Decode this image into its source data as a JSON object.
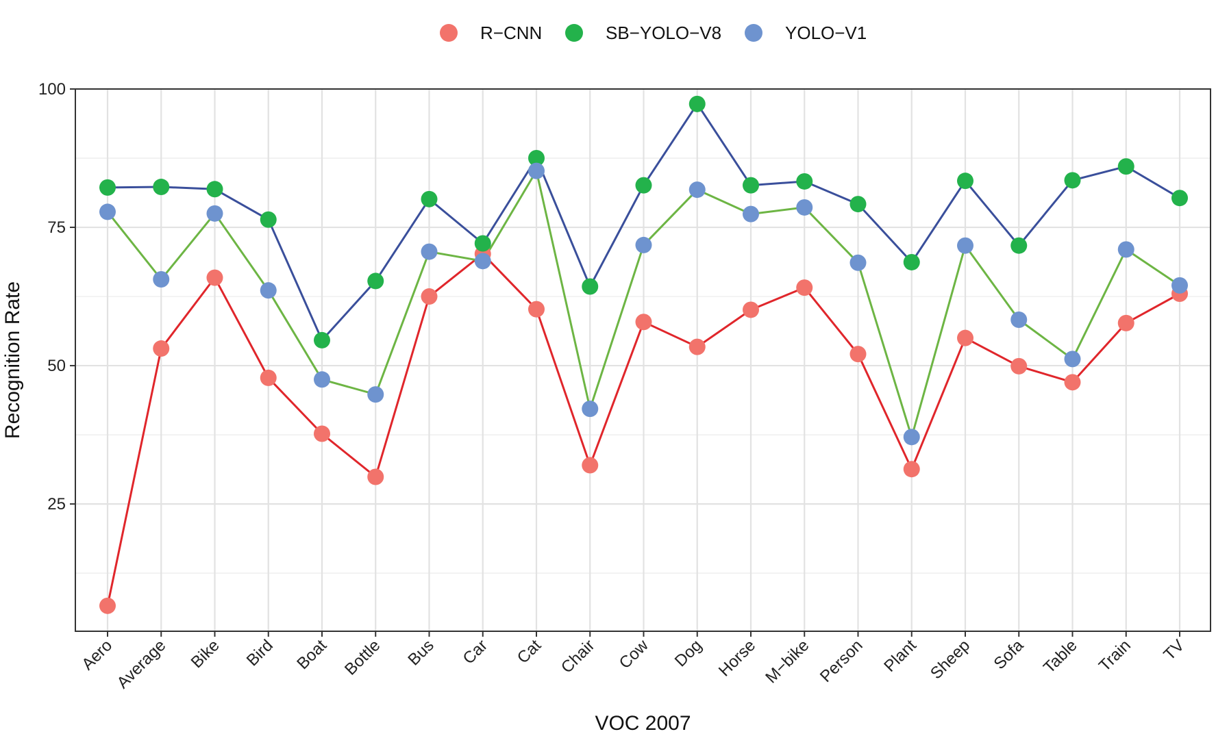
{
  "chart_data": {
    "type": "line",
    "xlabel": "VOC 2007",
    "ylabel": "Recognition Rate",
    "ylim": [
      2,
      100
    ],
    "yticks": [
      25,
      50,
      75,
      100
    ],
    "grid": true,
    "legend_position": "top",
    "categories": [
      "Aero",
      "Average",
      "Bike",
      "Bird",
      "Boat",
      "Bottle",
      "Bus",
      "Car",
      "Cat",
      "Chair",
      "Cow",
      "Dog",
      "Horse",
      "M−bike",
      "Person",
      "Plant",
      "Sheep",
      "Sofa",
      "Table",
      "Train",
      "TV"
    ],
    "series": [
      {
        "name": "R−CNN",
        "point_color": "#F2736B",
        "line_color": "#E0262B",
        "values": [
          6.6,
          53.1,
          65.9,
          47.8,
          37.7,
          29.9,
          62.5,
          70.2,
          60.2,
          32.0,
          57.9,
          53.4,
          60.1,
          64.1,
          52.1,
          31.3,
          55.0,
          49.9,
          47.0,
          57.7,
          63.0
        ]
      },
      {
        "name": "SB−YOLO−V8",
        "point_color": "#23B24B",
        "line_color": "#3A4F9B",
        "values": [
          82.2,
          82.3,
          81.9,
          76.4,
          54.6,
          65.3,
          80.1,
          72.1,
          87.5,
          64.3,
          82.6,
          97.3,
          82.6,
          83.3,
          79.2,
          68.7,
          83.4,
          71.7,
          83.5,
          86.0,
          80.3
        ]
      },
      {
        "name": "YOLO−V1",
        "point_color": "#6E93CF",
        "line_color": "#6DB544",
        "values": [
          77.8,
          65.6,
          77.5,
          63.6,
          47.5,
          44.8,
          70.6,
          68.9,
          85.2,
          42.2,
          71.8,
          81.8,
          77.4,
          78.6,
          68.6,
          37.1,
          71.7,
          58.3,
          51.2,
          71.0,
          64.5
        ]
      }
    ]
  }
}
